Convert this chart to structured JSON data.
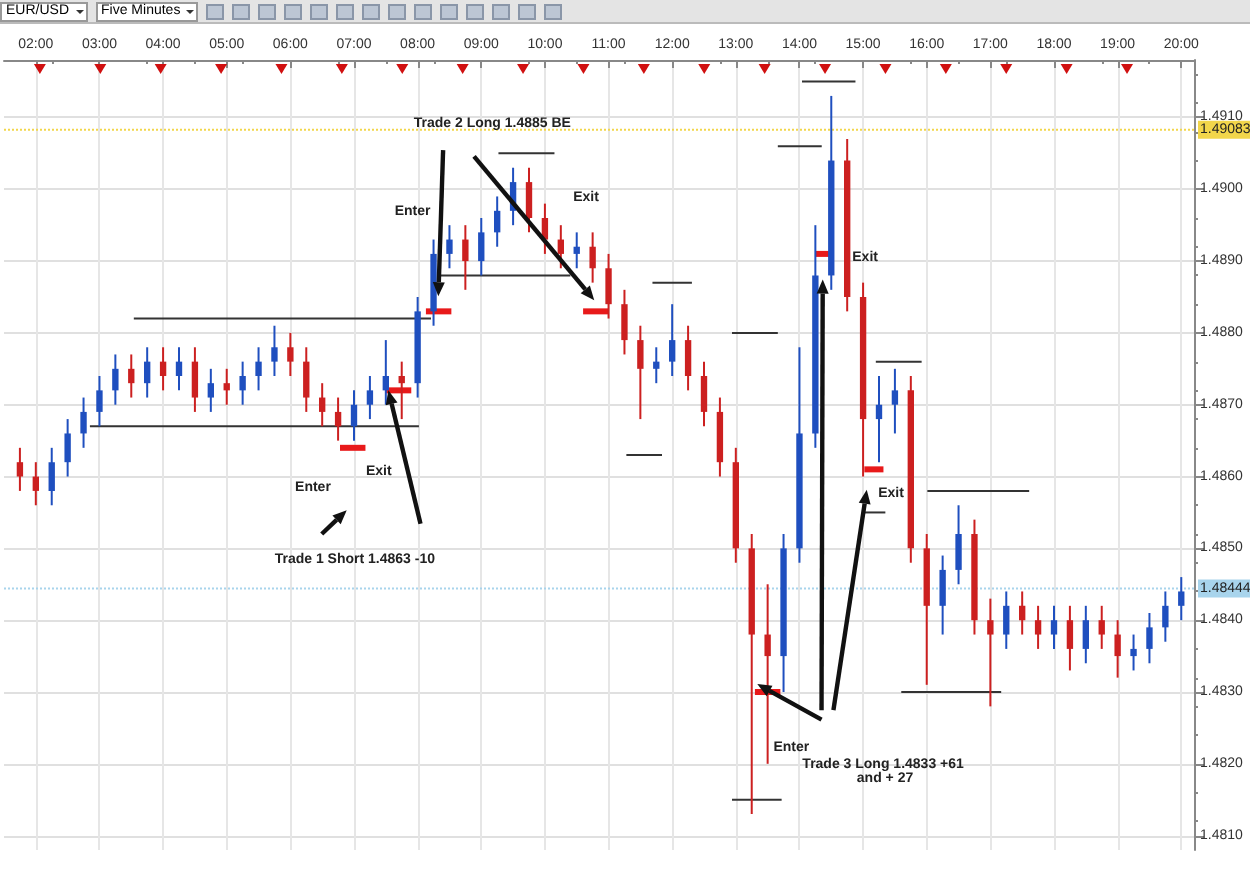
{
  "chart_data": {
    "type": "candlestick",
    "title": "EUR/USD",
    "subtitle": "Five Minutes",
    "x": [
      1.75,
      2,
      2.25,
      2.5,
      2.75,
      3,
      3.25,
      3.5,
      3.75,
      4,
      4.25,
      4.5,
      4.75,
      5,
      5.25,
      5.5,
      5.75,
      6,
      6.25,
      6.5,
      6.75,
      7,
      7.25,
      7.5,
      7.75,
      8,
      8.25,
      8.5,
      8.75,
      9,
      9.25,
      9.5,
      9.75,
      10,
      10.25,
      10.5,
      10.75,
      11,
      11.25,
      11.5,
      11.75,
      12,
      12.25,
      12.5,
      12.75,
      13,
      13.25,
      13.5,
      13.75,
      14,
      14.25,
      14.5,
      14.75,
      15,
      15.25,
      15.5,
      15.75,
      16,
      16.25,
      16.5,
      16.75,
      17,
      17.25,
      17.5,
      17.75,
      18,
      18.25,
      18.5,
      18.75,
      19,
      19.25,
      19.5,
      19.75,
      20
    ],
    "ohlc": [
      [
        1.4862,
        1.4864,
        1.4858,
        1.486
      ],
      [
        1.486,
        1.4862,
        1.4856,
        1.4858
      ],
      [
        1.4858,
        1.4864,
        1.4856,
        1.4862
      ],
      [
        1.4862,
        1.4868,
        1.486,
        1.4866
      ],
      [
        1.4866,
        1.4871,
        1.4864,
        1.4869
      ],
      [
        1.4869,
        1.4874,
        1.4867,
        1.4872
      ],
      [
        1.4872,
        1.4877,
        1.487,
        1.4875
      ],
      [
        1.4875,
        1.4877,
        1.4871,
        1.4873
      ],
      [
        1.4873,
        1.4878,
        1.4871,
        1.4876
      ],
      [
        1.4876,
        1.4878,
        1.4872,
        1.4874
      ],
      [
        1.4874,
        1.4878,
        1.4872,
        1.4876
      ],
      [
        1.4876,
        1.4878,
        1.4869,
        1.4871
      ],
      [
        1.4871,
        1.4875,
        1.4869,
        1.4873
      ],
      [
        1.4873,
        1.4875,
        1.487,
        1.4872
      ],
      [
        1.4872,
        1.4876,
        1.487,
        1.4874
      ],
      [
        1.4874,
        1.4878,
        1.4872,
        1.4876
      ],
      [
        1.4876,
        1.4881,
        1.4874,
        1.4878
      ],
      [
        1.4878,
        1.488,
        1.4874,
        1.4876
      ],
      [
        1.4876,
        1.4878,
        1.4869,
        1.4871
      ],
      [
        1.4871,
        1.4873,
        1.4867,
        1.4869
      ],
      [
        1.4869,
        1.4871,
        1.4865,
        1.4867
      ],
      [
        1.4867,
        1.4872,
        1.4865,
        1.487
      ],
      [
        1.487,
        1.4874,
        1.4868,
        1.4872
      ],
      [
        1.4872,
        1.4879,
        1.487,
        1.4874
      ],
      [
        1.4874,
        1.4876,
        1.4868,
        1.4873
      ],
      [
        1.4873,
        1.4885,
        1.4871,
        1.4883
      ],
      [
        1.4883,
        1.4893,
        1.4881,
        1.4891
      ],
      [
        1.4891,
        1.4895,
        1.4889,
        1.4893
      ],
      [
        1.4893,
        1.4895,
        1.4886,
        1.489
      ],
      [
        1.489,
        1.4896,
        1.4888,
        1.4894
      ],
      [
        1.4894,
        1.4899,
        1.4892,
        1.4897
      ],
      [
        1.4897,
        1.4903,
        1.4895,
        1.4901
      ],
      [
        1.4901,
        1.4903,
        1.4894,
        1.4896
      ],
      [
        1.4896,
        1.4898,
        1.4891,
        1.4893
      ],
      [
        1.4893,
        1.4895,
        1.4889,
        1.4891
      ],
      [
        1.4891,
        1.4894,
        1.4889,
        1.4892
      ],
      [
        1.4892,
        1.4894,
        1.4887,
        1.4889
      ],
      [
        1.4889,
        1.4891,
        1.4882,
        1.4884
      ],
      [
        1.4884,
        1.4886,
        1.4877,
        1.4879
      ],
      [
        1.4879,
        1.4881,
        1.4868,
        1.4875
      ],
      [
        1.4875,
        1.4878,
        1.4873,
        1.4876
      ],
      [
        1.4876,
        1.4884,
        1.4874,
        1.4879
      ],
      [
        1.4879,
        1.4881,
        1.4872,
        1.4874
      ],
      [
        1.4874,
        1.4876,
        1.4867,
        1.4869
      ],
      [
        1.4869,
        1.4871,
        1.486,
        1.4862
      ],
      [
        1.4862,
        1.4864,
        1.4848,
        1.485
      ],
      [
        1.485,
        1.4852,
        1.4813,
        1.4838
      ],
      [
        1.4838,
        1.4845,
        1.482,
        1.4835
      ],
      [
        1.4835,
        1.4852,
        1.483,
        1.485
      ],
      [
        1.485,
        1.4878,
        1.4848,
        1.4866
      ],
      [
        1.4866,
        1.4895,
        1.4864,
        1.4888
      ],
      [
        1.4888,
        1.4913,
        1.4886,
        1.4904
      ],
      [
        1.4904,
        1.4907,
        1.4883,
        1.4885
      ],
      [
        1.4885,
        1.4887,
        1.486,
        1.4868
      ],
      [
        1.4868,
        1.4874,
        1.4862,
        1.487
      ],
      [
        1.487,
        1.4875,
        1.4866,
        1.4872
      ],
      [
        1.4872,
        1.4874,
        1.4848,
        1.485
      ],
      [
        1.485,
        1.4852,
        1.4831,
        1.4842
      ],
      [
        1.4842,
        1.4849,
        1.4838,
        1.4847
      ],
      [
        1.4847,
        1.4856,
        1.4845,
        1.4852
      ],
      [
        1.4852,
        1.4854,
        1.4838,
        1.484
      ],
      [
        1.484,
        1.4843,
        1.4828,
        1.4838
      ],
      [
        1.4838,
        1.4844,
        1.4836,
        1.4842
      ],
      [
        1.4842,
        1.4844,
        1.4838,
        1.484
      ],
      [
        1.484,
        1.4842,
        1.4836,
        1.4838
      ],
      [
        1.4838,
        1.4842,
        1.4836,
        1.484
      ],
      [
        1.484,
        1.4842,
        1.4833,
        1.4836
      ],
      [
        1.4836,
        1.4842,
        1.4834,
        1.484
      ],
      [
        1.484,
        1.4842,
        1.4836,
        1.4838
      ],
      [
        1.4838,
        1.484,
        1.4832,
        1.4835
      ],
      [
        1.4835,
        1.4838,
        1.4833,
        1.4836
      ],
      [
        1.4836,
        1.4841,
        1.4834,
        1.4839
      ],
      [
        1.4839,
        1.4844,
        1.4837,
        1.4842
      ],
      [
        1.4842,
        1.4846,
        1.484,
        1.4844
      ]
    ],
    "colors": [
      "#cc2020",
      "#cc2020",
      "#1f4fbf",
      "#1f4fbf",
      "#1f4fbf",
      "#1f4fbf",
      "#1f4fbf",
      "#cc2020",
      "#1f4fbf",
      "#cc2020",
      "#1f4fbf",
      "#cc2020",
      "#1f4fbf",
      "#cc2020",
      "#1f4fbf",
      "#1f4fbf",
      "#1f4fbf",
      "#cc2020",
      "#cc2020",
      "#cc2020",
      "#cc2020",
      "#1f4fbf",
      "#1f4fbf",
      "#1f4fbf",
      "#cc2020",
      "#1f4fbf",
      "#1f4fbf",
      "#1f4fbf",
      "#cc2020",
      "#1f4fbf",
      "#1f4fbf",
      "#1f4fbf",
      "#cc2020",
      "#cc2020",
      "#cc2020",
      "#1f4fbf",
      "#cc2020",
      "#cc2020",
      "#cc2020",
      "#cc2020",
      "#1f4fbf",
      "#1f4fbf",
      "#cc2020",
      "#cc2020",
      "#cc2020",
      "#cc2020",
      "#cc2020",
      "#cc2020",
      "#1f4fbf",
      "#1f4fbf",
      "#1f4fbf",
      "#1f4fbf",
      "#cc2020",
      "#cc2020",
      "#1f4fbf",
      "#1f4fbf",
      "#cc2020",
      "#cc2020",
      "#1f4fbf",
      "#1f4fbf",
      "#cc2020",
      "#cc2020",
      "#1f4fbf",
      "#cc2020",
      "#cc2020",
      "#1f4fbf",
      "#cc2020",
      "#1f4fbf",
      "#cc2020",
      "#cc2020",
      "#1f4fbf",
      "#1f4fbf",
      "#1f4fbf",
      "#1f4fbf"
    ],
    "series": [
      {
        "type": "line",
        "color": "#333333",
        "marker": "none",
        "x": [
          3.54,
          8.21
        ],
        "values": [
          1.4882,
          1.4882
        ]
      },
      {
        "type": "line",
        "color": "#333333",
        "marker": "none",
        "x": [
          2.85,
          8.02
        ],
        "values": [
          1.4867,
          1.4867
        ]
      },
      {
        "type": "line",
        "color": "#333333",
        "marker": "none",
        "x": [
          8.33,
          10.4
        ],
        "values": [
          1.4888,
          1.4888
        ]
      },
      {
        "type": "line",
        "color": "#333333",
        "marker": "none",
        "x": [
          9.27,
          10.15
        ],
        "values": [
          1.4905,
          1.4905
        ]
      },
      {
        "type": "line",
        "color": "#333333",
        "marker": "none",
        "x": [
          11.69,
          12.31
        ],
        "values": [
          1.4887,
          1.4887
        ]
      },
      {
        "type": "line",
        "color": "#333333",
        "marker": "none",
        "x": [
          11.28,
          11.84
        ],
        "values": [
          1.4863,
          1.4863
        ]
      },
      {
        "type": "line",
        "color": "#333333",
        "marker": "none",
        "x": [
          12.94,
          13.66
        ],
        "values": [
          1.488,
          1.488
        ]
      },
      {
        "type": "line",
        "color": "#333333",
        "marker": "none",
        "x": [
          13.66,
          14.35
        ],
        "values": [
          1.4906,
          1.4906
        ]
      },
      {
        "type": "line",
        "color": "#333333",
        "marker": "none",
        "x": [
          14.04,
          14.88
        ],
        "values": [
          1.4915,
          1.4915
        ]
      },
      {
        "type": "line",
        "color": "#333333",
        "marker": "none",
        "x": [
          15.2,
          15.92
        ],
        "values": [
          1.4876,
          1.4876
        ]
      },
      {
        "type": "line",
        "color": "#333333",
        "marker": "none",
        "x": [
          14.98,
          15.35
        ],
        "values": [
          1.4855,
          1.4855
        ]
      },
      {
        "type": "line",
        "color": "#333333",
        "marker": "none",
        "x": [
          16.01,
          17.61
        ],
        "values": [
          1.4858,
          1.4858
        ]
      },
      {
        "type": "line",
        "color": "#333333",
        "marker": "none",
        "x": [
          15.6,
          17.17
        ],
        "values": [
          1.483,
          1.483
        ]
      },
      {
        "type": "line",
        "color": "#333333",
        "marker": "none",
        "x": [
          12.94,
          13.72
        ],
        "values": [
          1.4815,
          1.4815
        ]
      },
      {
        "type": "line",
        "color": "#e8191a",
        "marker": "none",
        "x": [
          6.78,
          7.18
        ],
        "values": [
          1.4864,
          1.4864
        ]
      },
      {
        "type": "line",
        "color": "#e8191a",
        "marker": "none",
        "x": [
          7.5,
          7.9
        ],
        "values": [
          1.4872,
          1.4872
        ]
      },
      {
        "type": "line",
        "color": "#e8191a",
        "marker": "none",
        "x": [
          8.13,
          8.53
        ],
        "values": [
          1.4883,
          1.4883
        ]
      },
      {
        "type": "line",
        "color": "#e8191a",
        "marker": "none",
        "x": [
          10.6,
          11.0
        ],
        "values": [
          1.4883,
          1.4883
        ]
      },
      {
        "type": "line",
        "color": "#e8191a",
        "marker": "none",
        "x": [
          13.3,
          13.7
        ],
        "values": [
          1.483,
          1.483
        ]
      },
      {
        "type": "line",
        "color": "#e8191a",
        "marker": "none",
        "x": [
          14.25,
          14.51
        ],
        "values": [
          1.4891,
          1.4891
        ]
      },
      {
        "type": "line",
        "color": "#e8191a",
        "marker": "none",
        "x": [
          15.02,
          15.32
        ],
        "values": [
          1.4861,
          1.4861
        ]
      }
    ],
    "xlim": [
      1.5,
      20.2
    ],
    "xticks": [
      {
        "value": 2,
        "label": "02:00"
      },
      {
        "value": 3,
        "label": "03:00"
      },
      {
        "value": 4,
        "label": "04:00"
      },
      {
        "value": 5,
        "label": "05:00"
      },
      {
        "value": 6,
        "label": "06:00"
      },
      {
        "value": 7,
        "label": "07:00"
      },
      {
        "value": 8,
        "label": "08:00"
      },
      {
        "value": 9,
        "label": "09:00"
      },
      {
        "value": 10,
        "label": "10:00"
      },
      {
        "value": 11,
        "label": "11:00"
      },
      {
        "value": 12,
        "label": "12:00"
      },
      {
        "value": 13,
        "label": "13:00"
      },
      {
        "value": 14,
        "label": "14:00"
      },
      {
        "value": 15,
        "label": "15:00"
      },
      {
        "value": 16,
        "label": "16:00"
      },
      {
        "value": 17,
        "label": "17:00"
      },
      {
        "value": 18,
        "label": "18:00"
      },
      {
        "value": 19,
        "label": "19:00"
      },
      {
        "value": 20,
        "label": "20:00"
      }
    ],
    "ylim": [
      1.4808,
      1.4918
    ],
    "yticks": [
      {
        "value": 1.481,
        "label": "1.4810"
      },
      {
        "value": 1.482,
        "label": "1.4820"
      },
      {
        "value": 1.483,
        "label": "1.4830"
      },
      {
        "value": 1.484,
        "label": "1.4840"
      },
      {
        "value": 1.485,
        "label": "1.4850"
      },
      {
        "value": 1.486,
        "label": "1.4860"
      },
      {
        "value": 1.487,
        "label": "1.4870"
      },
      {
        "value": 1.488,
        "label": "1.4880"
      },
      {
        "value": 1.489,
        "label": "1.4890"
      },
      {
        "value": 1.49,
        "label": "1.4900"
      },
      {
        "value": 1.491,
        "label": "1.4910"
      }
    ],
    "ref_lines": [
      {
        "axis": "y",
        "value": 1.49083,
        "label": "1.49083",
        "color": "#f2d64b",
        "line_style": "dotted"
      },
      {
        "axis": "y",
        "value": 1.48444,
        "label": "1.48444",
        "color": "#a8d4ec",
        "line_style": "dotted"
      }
    ],
    "annotations": [
      "Trade 2 Long 1.4885 BE",
      "Enter",
      "Exit",
      "Enter",
      "Exit",
      "Trade 1 Short 1.4863 -10",
      "Exit",
      "Exit",
      "Enter",
      "Trade 3 Long 1.4833 +61 and + 27"
    ],
    "grid": true
  }
}
